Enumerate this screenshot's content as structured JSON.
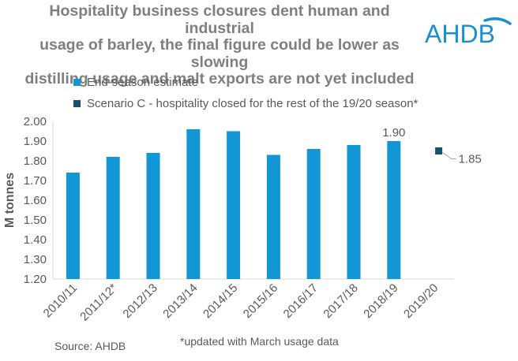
{
  "header": {
    "title_lines": [
      "Hospitality business closures dent human and industrial",
      "usage of barley, the final figure could be lower as slowing",
      "distilling usage and malt exports are not yet included"
    ],
    "logo_text": "AHDB"
  },
  "footer": {
    "source": "Source: AHDB",
    "footnote": "*updated with March usage data"
  },
  "colors": {
    "end_season": "#1396d6",
    "scenario_c": "#14536e",
    "title": "#7f7f7f",
    "logo": "#1a8fd0"
  },
  "chart_data": {
    "type": "bar",
    "title": "Hospitality business closures dent human and industrial usage of barley, the final figure could be lower as slowing distilling usage and malt exports are not yet included",
    "xlabel": "",
    "ylabel": "M tonnes",
    "ylim": [
      1.2,
      2.0
    ],
    "yticks": [
      "1.20",
      "1.30",
      "1.40",
      "1.50",
      "1.60",
      "1.70",
      "1.80",
      "1.90",
      "2.00"
    ],
    "ytick_values": [
      1.2,
      1.3,
      1.4,
      1.5,
      1.6,
      1.7,
      1.8,
      1.9,
      2.0
    ],
    "categories": [
      "2010/11",
      "2011/12*",
      "2012/13",
      "2013/14",
      "2014/15",
      "2015/16",
      "2016/17",
      "2017/18",
      "2018/19",
      "2019/20"
    ],
    "series": [
      {
        "name": "End-season estimate",
        "type": "bar",
        "values": [
          1.74,
          1.82,
          1.84,
          1.96,
          1.95,
          1.83,
          1.86,
          1.88,
          1.9,
          null
        ]
      },
      {
        "name": "Scenario C - hospitality closed for the rest of the 19/20 season*",
        "type": "marker",
        "values": [
          null,
          null,
          null,
          null,
          null,
          null,
          null,
          null,
          null,
          1.85
        ]
      }
    ],
    "data_labels": [
      {
        "series": 0,
        "category": "2018/19",
        "text": "1.90"
      },
      {
        "series": 1,
        "category": "2019/20",
        "text": "1.85"
      }
    ],
    "legend_position": "top-left",
    "grid": false
  }
}
